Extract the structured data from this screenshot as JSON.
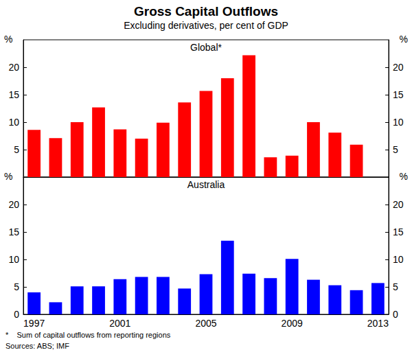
{
  "title": "Gross Capital Outflows",
  "subtitle": "Excluding derivatives, per cent of GDP",
  "footnote": "*    Sum of capital outflows from reporting regions",
  "sources": "Sources: ABS; IMF",
  "chart_data": [
    {
      "type": "bar",
      "title": "Global*",
      "y_unit": "%",
      "categories": [
        "1997",
        null,
        null,
        null,
        "2001",
        null,
        null,
        null,
        "2005",
        null,
        null,
        null,
        "2009",
        null,
        null,
        null,
        "2013"
      ],
      "values": [
        8.6,
        7.1,
        10.0,
        12.7,
        8.7,
        7.0,
        9.9,
        13.6,
        15.7,
        18.0,
        22.2,
        3.6,
        3.9,
        10.0,
        8.1,
        5.9,
        null
      ],
      "color": "#ff0000",
      "ylim": [
        0,
        25
      ],
      "yticks": [
        5,
        10,
        15,
        20
      ],
      "grid": false,
      "tick_labels": "y"
    },
    {
      "type": "bar",
      "title": "Australia",
      "y_unit": "%",
      "categories": [
        "1997",
        null,
        null,
        null,
        "2001",
        null,
        null,
        null,
        "2005",
        null,
        null,
        null,
        "2009",
        null,
        null,
        null,
        "2013"
      ],
      "values": [
        4.0,
        2.2,
        5.1,
        5.1,
        6.4,
        6.8,
        6.8,
        4.7,
        7.3,
        13.4,
        7.4,
        6.6,
        10.1,
        6.3,
        5.3,
        4.4,
        5.7
      ],
      "color": "#0000ff",
      "ylim": [
        0,
        25
      ],
      "yticks": [
        0,
        5,
        10,
        15,
        20
      ],
      "grid": false
    }
  ]
}
